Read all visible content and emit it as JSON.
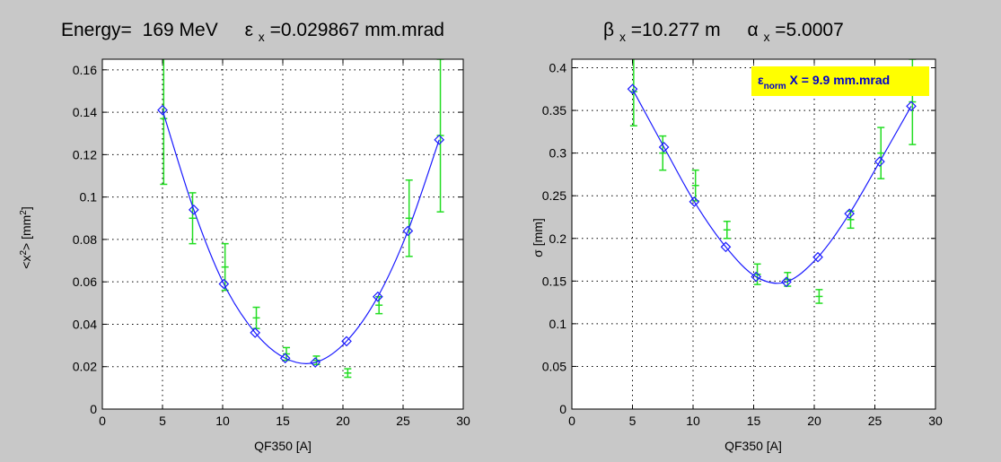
{
  "figure": {
    "background": "#c8c8c8",
    "left_title": {
      "energy_label": "Energy=",
      "energy_value": "169 MeV",
      "emit_symbol": "ε",
      "emit_sub": "x",
      "emit_text": "=0.029867 mm.mrad"
    },
    "right_title": {
      "beta_symbol": "β",
      "beta_sub": "x",
      "beta_text": "=10.277 m",
      "alpha_symbol": "α",
      "alpha_sub": "x",
      "alpha_text": "=5.0007"
    }
  },
  "chart_data": [
    {
      "type": "line",
      "xlabel": "QF350 [A]",
      "ylabel": {
        "pre": "<x",
        "sup": "2",
        "mid": "> [mm",
        "sup2": "2",
        "post": "]"
      },
      "xlim": [
        0,
        30
      ],
      "ylim": [
        0,
        0.165
      ],
      "xticks": [
        0,
        5,
        10,
        15,
        20,
        25,
        30
      ],
      "xtick_labels": [
        "0",
        "5",
        "10",
        "15",
        "20",
        "25",
        "30"
      ],
      "yticks": [
        0,
        0.02,
        0.04,
        0.06,
        0.08,
        0.1,
        0.12,
        0.14,
        0.16
      ],
      "ytick_labels": [
        "0",
        "0.02",
        "0.04",
        "0.06",
        "0.08",
        "0.1",
        "0.12",
        "0.14",
        "0.16"
      ],
      "grid": true,
      "colors": {
        "fit": "#1a1aff",
        "measured": "#22dd22"
      },
      "fit_points": {
        "x": [
          5.0,
          7.6,
          10.1,
          12.7,
          15.2,
          17.7,
          20.3,
          22.9,
          25.4,
          28.0
        ],
        "y": [
          0.141,
          0.094,
          0.059,
          0.036,
          0.024,
          0.022,
          0.032,
          0.053,
          0.084,
          0.127
        ]
      },
      "measured": {
        "x": [
          5.1,
          7.5,
          10.2,
          12.8,
          15.3,
          17.8,
          20.4,
          23.0,
          25.5,
          28.1
        ],
        "y": [
          0.137,
          0.09,
          0.067,
          0.043,
          0.026,
          0.023,
          0.017,
          0.049,
          0.09,
          0.129
        ],
        "err": [
          0.031,
          0.012,
          0.011,
          0.005,
          0.003,
          0.002,
          0.002,
          0.004,
          0.018,
          0.036
        ]
      }
    },
    {
      "type": "line",
      "xlabel": "QF350 [A]",
      "ylabel": {
        "pre": "σ [mm]"
      },
      "xlim": [
        0,
        30
      ],
      "ylim": [
        0,
        0.41
      ],
      "xticks": [
        0,
        5,
        10,
        15,
        20,
        25,
        30
      ],
      "xtick_labels": [
        "0",
        "5",
        "10",
        "15",
        "20",
        "25",
        "30"
      ],
      "yticks": [
        0,
        0.05,
        0.1,
        0.15,
        0.2,
        0.25,
        0.3,
        0.35,
        0.4
      ],
      "ytick_labels": [
        "0",
        "0.05",
        "0.1",
        "0.15",
        "0.2",
        "0.25",
        "0.3",
        "0.35",
        "0.4"
      ],
      "grid": true,
      "colors": {
        "fit": "#1a1aff",
        "measured": "#22dd22",
        "annotation_bg": "#ffff00",
        "annotation_text": "#0000cc"
      },
      "annotation": {
        "symbol": "ε",
        "sub": "norm",
        "text": " X = 9.9 mm.mrad",
        "placement": "top-right"
      },
      "fit_points": {
        "x": [
          5.0,
          7.6,
          10.1,
          12.7,
          15.2,
          17.7,
          20.3,
          22.9,
          25.4,
          28.0
        ],
        "y": [
          0.375,
          0.307,
          0.243,
          0.19,
          0.155,
          0.149,
          0.178,
          0.229,
          0.29,
          0.355
        ]
      },
      "measured": {
        "x": [
          5.1,
          7.5,
          10.2,
          12.8,
          15.3,
          17.8,
          20.4,
          23.0,
          25.5,
          28.1
        ],
        "y": [
          0.372,
          0.3,
          0.262,
          0.21,
          0.158,
          0.152,
          0.132,
          0.222,
          0.3,
          0.36
        ],
        "err": [
          0.04,
          0.02,
          0.018,
          0.01,
          0.012,
          0.008,
          0.008,
          0.01,
          0.03,
          0.05
        ]
      }
    }
  ]
}
